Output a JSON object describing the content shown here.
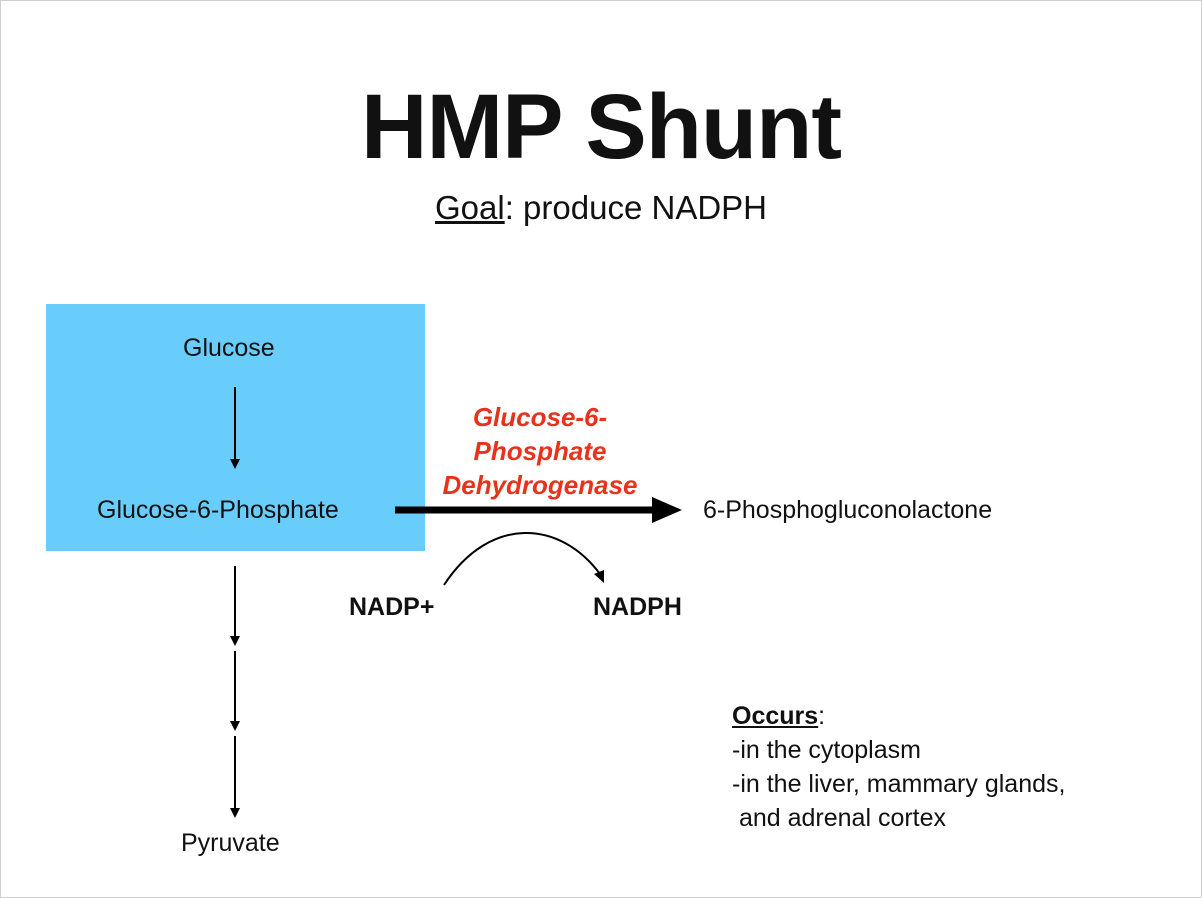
{
  "slide": {
    "title": "HMP Shunt",
    "goal_label": "Goal",
    "goal_colon": ":",
    "goal_text": " produce NADPH"
  },
  "pathway": {
    "glucose": "Glucose",
    "g6p": "Glucose-6-Phosphate",
    "pyruvate": "Pyruvate",
    "product": "6-Phosphogluconolactone",
    "enzyme_line1": "Glucose-6-",
    "enzyme_line2": "Phosphate",
    "enzyme_line3": "Dehydrogenase",
    "cofactor_in": "NADP+",
    "cofactor_out": "NADPH"
  },
  "occurs": {
    "heading": "Occurs",
    "colon": ":",
    "line1": "-in the cytoplasm",
    "line2": "-in the liver, mammary glands,",
    "line3": " and adrenal cortex"
  },
  "colors": {
    "highlight_box": "#69cdfc",
    "enzyme_text": "#e8331c",
    "arrow": "#000000"
  }
}
